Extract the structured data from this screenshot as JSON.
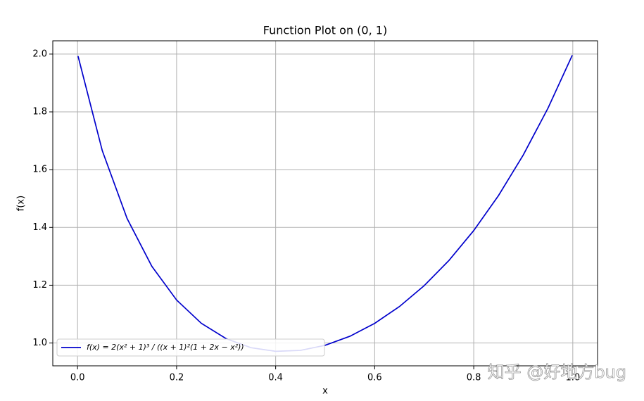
{
  "chart_data": {
    "type": "line",
    "title": "Function Plot on (0, 1)",
    "x_label": "x",
    "y_label": "f(x)",
    "x": [
      0.001,
      0.05,
      0.1,
      0.15,
      0.2,
      0.25,
      0.3,
      0.35,
      0.4,
      0.45,
      0.5,
      0.55,
      0.6,
      0.65,
      0.7,
      0.75,
      0.8,
      0.85,
      0.9,
      0.95,
      0.999
    ],
    "series": [
      {
        "name": "f(x) = 2(x² + 1)³ / ((x + 1)²(1 + 2x − x²))",
        "color": "#0000cc",
        "values": [
          1.993,
          1.6654,
          1.4311,
          1.2655,
          1.1488,
          1.068,
          1.015,
          0.9839,
          0.9712,
          0.9744,
          0.9921,
          1.0234,
          1.068,
          1.1262,
          1.1986,
          1.2858,
          1.3892,
          1.5103,
          1.6508,
          1.8132,
          1.996
        ]
      }
    ],
    "xlim": [
      -0.05,
      1.05
    ],
    "ylim": [
      0.921,
      2.046
    ],
    "xticks": [
      {
        "value": 0,
        "label": "0.0"
      },
      {
        "value": 0.2,
        "label": "0.2"
      },
      {
        "value": 0.4,
        "label": "0.4"
      },
      {
        "value": 0.6,
        "label": "0.6"
      },
      {
        "value": 0.8,
        "label": "0.8"
      },
      {
        "value": 1,
        "label": "1.0"
      }
    ],
    "yticks": [
      {
        "value": 1,
        "label": "1.0"
      },
      {
        "value": 1.2,
        "label": "1.2"
      },
      {
        "value": 1.4,
        "label": "1.4"
      },
      {
        "value": 1.6,
        "label": "1.6"
      },
      {
        "value": 1.8,
        "label": "1.8"
      },
      {
        "value": 2,
        "label": "2.0"
      }
    ],
    "grid": true,
    "legend": "lower left",
    "watermark": "知乎 @好地方bug"
  }
}
